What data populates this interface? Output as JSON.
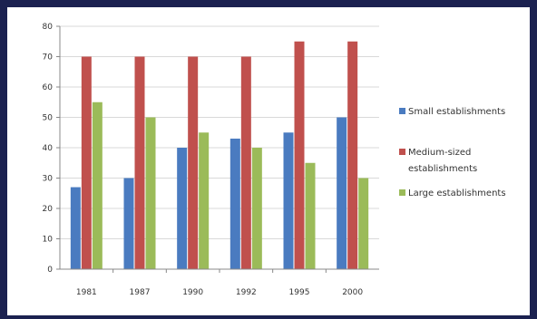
{
  "chart_data": {
    "type": "bar",
    "categories": [
      "1981",
      "1987",
      "1990",
      "1992",
      "1995",
      "2000"
    ],
    "series": [
      {
        "name": "Small establishments",
        "values": [
          27,
          30,
          40,
          43,
          45,
          50
        ],
        "color": "#4a7bc0"
      },
      {
        "name": "Medium-sized establishments",
        "legend_lines": [
          "Medium-sized",
          "establishments"
        ],
        "values": [
          70,
          70,
          70,
          70,
          75,
          75
        ],
        "color": "#c0504d"
      },
      {
        "name": "Large establishments",
        "values": [
          55,
          50,
          45,
          40,
          35,
          30
        ],
        "color": "#9bbb59"
      }
    ],
    "ylim": [
      0,
      80
    ],
    "yticks": [
      0,
      10,
      20,
      30,
      40,
      50,
      60,
      70,
      80
    ],
    "grid": "horizontal",
    "legend": "right",
    "axis_color": "#888888",
    "grid_color": "#d9d9d9"
  }
}
